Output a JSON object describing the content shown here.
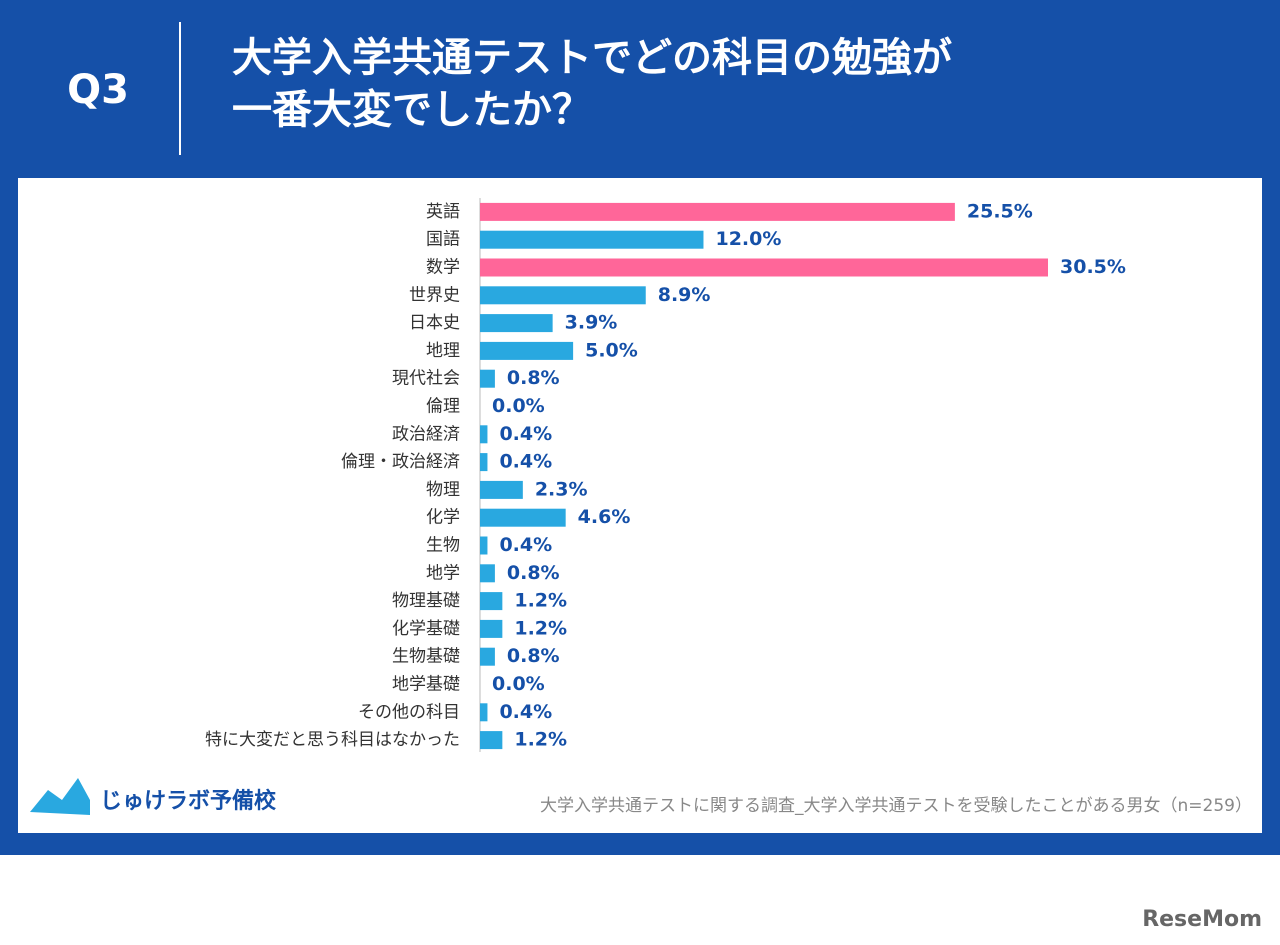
{
  "chart_data": {
    "type": "bar",
    "orientation": "horizontal",
    "question": "Q3",
    "title": [
      "大学入学共通テストでどの科目の勉強が",
      "一番大変でしたか？"
    ],
    "categories": [
      "英語",
      "国語",
      "数学",
      "世界史",
      "日本史",
      "地理",
      "現代社会",
      "倫理",
      "政治経済",
      "倫理・政治経済",
      "物理",
      "化学",
      "生物",
      "地学",
      "物理基礎",
      "化学基礎",
      "生物基礎",
      "地学基礎",
      "その他の科目",
      "特に大変だと思う科目はなかった"
    ],
    "values": [
      25.5,
      12.0,
      30.5,
      8.9,
      3.9,
      5.0,
      0.8,
      0.0,
      0.4,
      0.4,
      2.3,
      4.6,
      0.4,
      0.8,
      1.2,
      1.2,
      0.8,
      0.0,
      0.4,
      1.2
    ],
    "value_labels": [
      "25.5%",
      "12.0%",
      "30.5%",
      "8.9%",
      "3.9%",
      "5.0%",
      "0.8%",
      "0.0%",
      "0.4%",
      "0.4%",
      "2.3%",
      "4.6%",
      "0.4%",
      "0.8%",
      "1.2%",
      "1.2%",
      "0.8%",
      "0.0%",
      "0.4%",
      "1.2%"
    ],
    "colors": [
      "#ff6699",
      "#29a8e0",
      "#ff6699",
      "#29a8e0",
      "#29a8e0",
      "#29a8e0",
      "#29a8e0",
      "#29a8e0",
      "#29a8e0",
      "#29a8e0",
      "#29a8e0",
      "#29a8e0",
      "#29a8e0",
      "#29a8e0",
      "#29a8e0",
      "#29a8e0",
      "#29a8e0",
      "#29a8e0",
      "#29a8e0",
      "#29a8e0"
    ],
    "xlim": [
      0,
      35
    ],
    "note": "大学入学共通テストに関する調査_大学入学共通テストを受験したことがある男女（n=259）"
  },
  "branding": {
    "logo": "じゅけラボ予備校",
    "watermark": "ReseMom"
  }
}
